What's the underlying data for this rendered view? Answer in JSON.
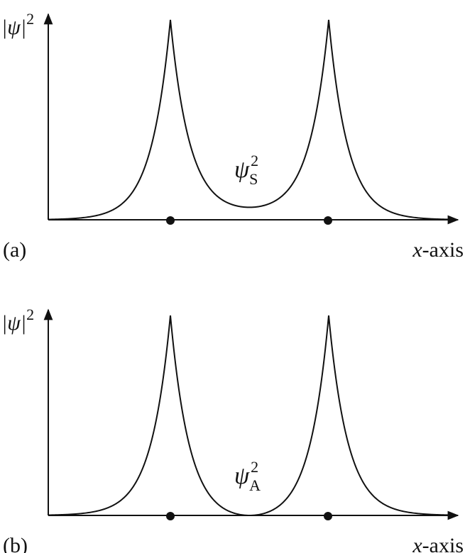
{
  "panels": [
    {
      "tag": "(a)",
      "y_label": {
        "base": "|ψ|",
        "sup": "2"
      },
      "x_label": {
        "italic": "x",
        "rest": "-axis"
      },
      "curve_label": {
        "base": "ψ",
        "sup": "2",
        "sub": "S"
      }
    },
    {
      "tag": "(b)",
      "y_label": {
        "base": "|ψ|",
        "sup": "2"
      },
      "x_label": {
        "italic": "x",
        "rest": "-axis"
      },
      "curve_label": {
        "base": "ψ",
        "sup": "2",
        "sub": "A"
      }
    }
  ]
}
